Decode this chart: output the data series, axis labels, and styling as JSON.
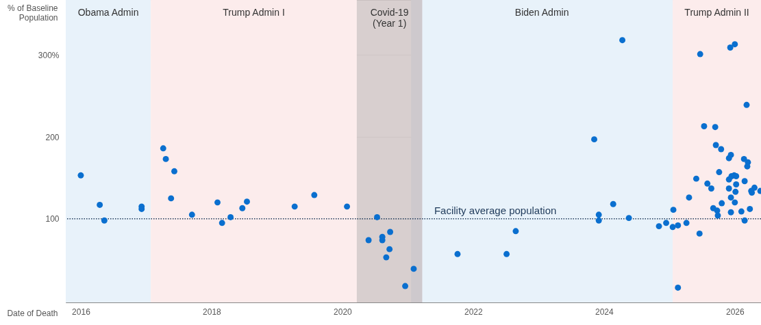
{
  "chart_data": {
    "type": "scatter",
    "xlabel": "Date of Death",
    "ylabel": "% of Baseline Population",
    "xlim": [
      2015.77,
      2026.4
    ],
    "xticks": [
      2016,
      2018,
      2020,
      2022,
      2024,
      2026
    ],
    "ylim": [
      -2,
      367
    ],
    "yticks": [
      100,
      200,
      {
        "value": 300,
        "label": "300%"
      }
    ],
    "grid": true,
    "marker": "circle",
    "bands": [
      {
        "axis": "x",
        "from": 2015.77,
        "to": 2017.07,
        "label": "Obama Admin",
        "color": "#e8f2fa"
      },
      {
        "axis": "x",
        "from": 2017.07,
        "to": 2020.22,
        "label": "Trump Admin I",
        "color": "#fcecec"
      },
      {
        "axis": "x",
        "from": 2021.05,
        "to": 2025.05,
        "label": "Biden Admin",
        "color": "#e8f2fa"
      },
      {
        "axis": "x",
        "from": 2025.05,
        "to": 2026.4,
        "label": "Trump Admin II",
        "color": "#fcecec"
      },
      {
        "axis": "x",
        "from": 2020.22,
        "to": 2021.22,
        "label": "Covid-19\n(Year 1)",
        "color": "#b8a8a8"
      }
    ],
    "ref_lines": [
      {
        "axis": "y",
        "value": 100,
        "label": "Facility average population",
        "color": "#1f3a5a",
        "line_style": "dotted"
      }
    ],
    "series": [
      {
        "color": "#0a6fcf",
        "x": [
          2016.0,
          2016.29,
          2016.36,
          2016.93,
          2016.93,
          2017.26,
          2017.3,
          2017.43,
          2017.38,
          2017.7,
          2018.09,
          2018.16,
          2018.29,
          2018.47,
          2018.54,
          2019.27,
          2019.57,
          2020.07,
          2020.53,
          2020.4,
          2020.61,
          2020.61,
          2020.73,
          2020.72,
          2020.67,
          2021.09,
          2020.96,
          2021.76,
          2022.51,
          2022.65,
          2023.85,
          2023.92,
          2023.92,
          2024.14,
          2024.28,
          2024.38,
          2024.84,
          2024.95,
          2025.05,
          2025.13,
          2025.06,
          2025.26,
          2025.46,
          2025.13,
          2025.3,
          2025.41,
          2025.47,
          2025.53,
          2025.7,
          2025.58,
          2025.64,
          2025.71,
          2025.79,
          2025.76,
          2025.67,
          2025.73,
          2025.74,
          2025.8,
          2025.91,
          2025.94,
          2025.93,
          2026.0,
          2025.91,
          2025.95,
          2025.99,
          2026.02,
          2025.91,
          2026.02,
          2026.01,
          2025.94,
          2026.0,
          2025.94,
          2026.1,
          2026.15,
          2026.18,
          2026.14,
          2026.2,
          2026.19,
          2026.15,
          2026.23,
          2026.25,
          2026.26,
          2026.3,
          2026.39
        ],
        "values": [
          153,
          117,
          98,
          115,
          112,
          186,
          173,
          158,
          125,
          105,
          120,
          95,
          102,
          113,
          121,
          115,
          129,
          115,
          102,
          74,
          78,
          74,
          84,
          63,
          53,
          39,
          18,
          57,
          57,
          85,
          197,
          105,
          98,
          118,
          318,
          101,
          91,
          95,
          90,
          92,
          111,
          95,
          82,
          16,
          126,
          149,
          301,
          213,
          212,
          143,
          137,
          190,
          185,
          157,
          113,
          110,
          104,
          119,
          174,
          178,
          309,
          313,
          148,
          152,
          153,
          152,
          137,
          142,
          133,
          126,
          120,
          108,
          109,
          98,
          239,
          173,
          169,
          164,
          146,
          112,
          134,
          132,
          138,
          134
        ]
      }
    ]
  }
}
